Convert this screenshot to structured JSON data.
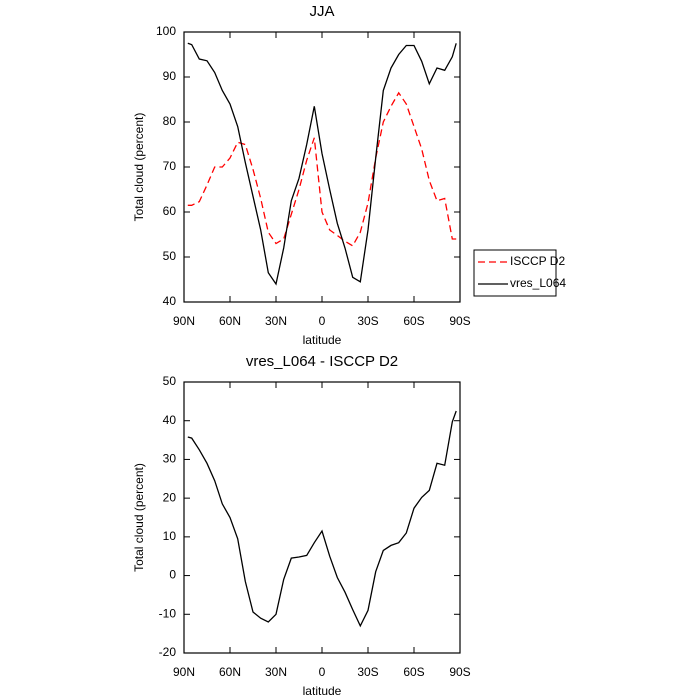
{
  "chart_data": [
    {
      "type": "line",
      "title": "JJA",
      "xlabel": "latitude",
      "ylabel": "Total cloud (percent)",
      "x": [
        87.5,
        85,
        80,
        75,
        70,
        65,
        60,
        55,
        50,
        45,
        40,
        35,
        30,
        25,
        20,
        15,
        10,
        5,
        0,
        -5,
        -10,
        -15,
        -20,
        -25,
        -30,
        -35,
        -40,
        -45,
        -50,
        -55,
        -60,
        -65,
        -70,
        -75,
        -80,
        -85,
        -87.5
      ],
      "series": [
        {
          "name": "ISCCP D2",
          "color": "#ff0000",
          "linestyle": "dashed",
          "values": [
            61.5,
            61.5,
            62.3,
            66,
            70,
            70,
            72,
            75.5,
            75,
            69.5,
            63,
            55.5,
            53,
            54,
            59.5,
            65,
            71.5,
            76.5,
            60,
            56,
            54.8,
            53.5,
            52.5,
            55.5,
            62,
            72,
            80,
            83.5,
            86.5,
            84,
            79,
            74,
            67,
            62.5,
            63,
            54,
            54
          ]
        },
        {
          "name": "vres_L064",
          "color": "#000000",
          "linestyle": "solid",
          "values": [
            97.5,
            97.2,
            94,
            93.6,
            91,
            87,
            84,
            79,
            71,
            63.5,
            56,
            46.5,
            44,
            52,
            62.5,
            67.5,
            75,
            83.5,
            73,
            65,
            57.5,
            52,
            45.5,
            44.5,
            56,
            72,
            87,
            92,
            95,
            97,
            97,
            93.5,
            88.5,
            92,
            91.5,
            94.5,
            97.5
          ]
        }
      ],
      "xlim": [
        90,
        -90
      ],
      "xticks": [
        {
          "value": 90,
          "label": "90N"
        },
        {
          "value": 60,
          "label": "60N"
        },
        {
          "value": 30,
          "label": "30N"
        },
        0,
        {
          "value": -30,
          "label": "30S"
        },
        {
          "value": -60,
          "label": "60S"
        },
        {
          "value": -90,
          "label": "90S"
        }
      ],
      "ylim": [
        40,
        100
      ],
      "yticks": [
        40,
        50,
        60,
        70,
        80,
        90,
        100
      ],
      "legend": "right"
    },
    {
      "type": "line",
      "title": "vres_L064 - ISCCP D2",
      "xlabel": "latitude",
      "ylabel": "Total cloud (percent)",
      "x": [
        87.5,
        85,
        80,
        75,
        70,
        65,
        60,
        55,
        50,
        45,
        40,
        35,
        30,
        25,
        20,
        15,
        10,
        5,
        0,
        -5,
        -10,
        -15,
        -20,
        -25,
        -30,
        -35,
        -40,
        -45,
        -50,
        -55,
        -60,
        -65,
        -70,
        -75,
        -80,
        -85,
        -87.5
      ],
      "values": [
        35.8,
        35.5,
        32.5,
        29,
        24.5,
        18.5,
        15,
        9.5,
        -1.5,
        -9.4,
        -11,
        -12,
        -10,
        -1,
        4.5,
        4.8,
        5.2,
        8.5,
        11.5,
        5,
        -0.5,
        -4.3,
        -8.8,
        -13,
        -9,
        1,
        6.5,
        7.8,
        8.5,
        11,
        17.4,
        20.2,
        22,
        29,
        28.5,
        39.7,
        42.5
      ],
      "color": "#000000",
      "xlim": [
        90,
        -90
      ],
      "xticks": [
        {
          "value": 90,
          "label": "90N"
        },
        {
          "value": 60,
          "label": "60N"
        },
        {
          "value": 30,
          "label": "30N"
        },
        0,
        {
          "value": -30,
          "label": "30S"
        },
        {
          "value": -60,
          "label": "60S"
        },
        {
          "value": -90,
          "label": "90S"
        }
      ],
      "ylim": [
        -20,
        50
      ],
      "yticks": [
        -20,
        -10,
        0,
        10,
        20,
        30,
        40,
        50
      ]
    }
  ]
}
